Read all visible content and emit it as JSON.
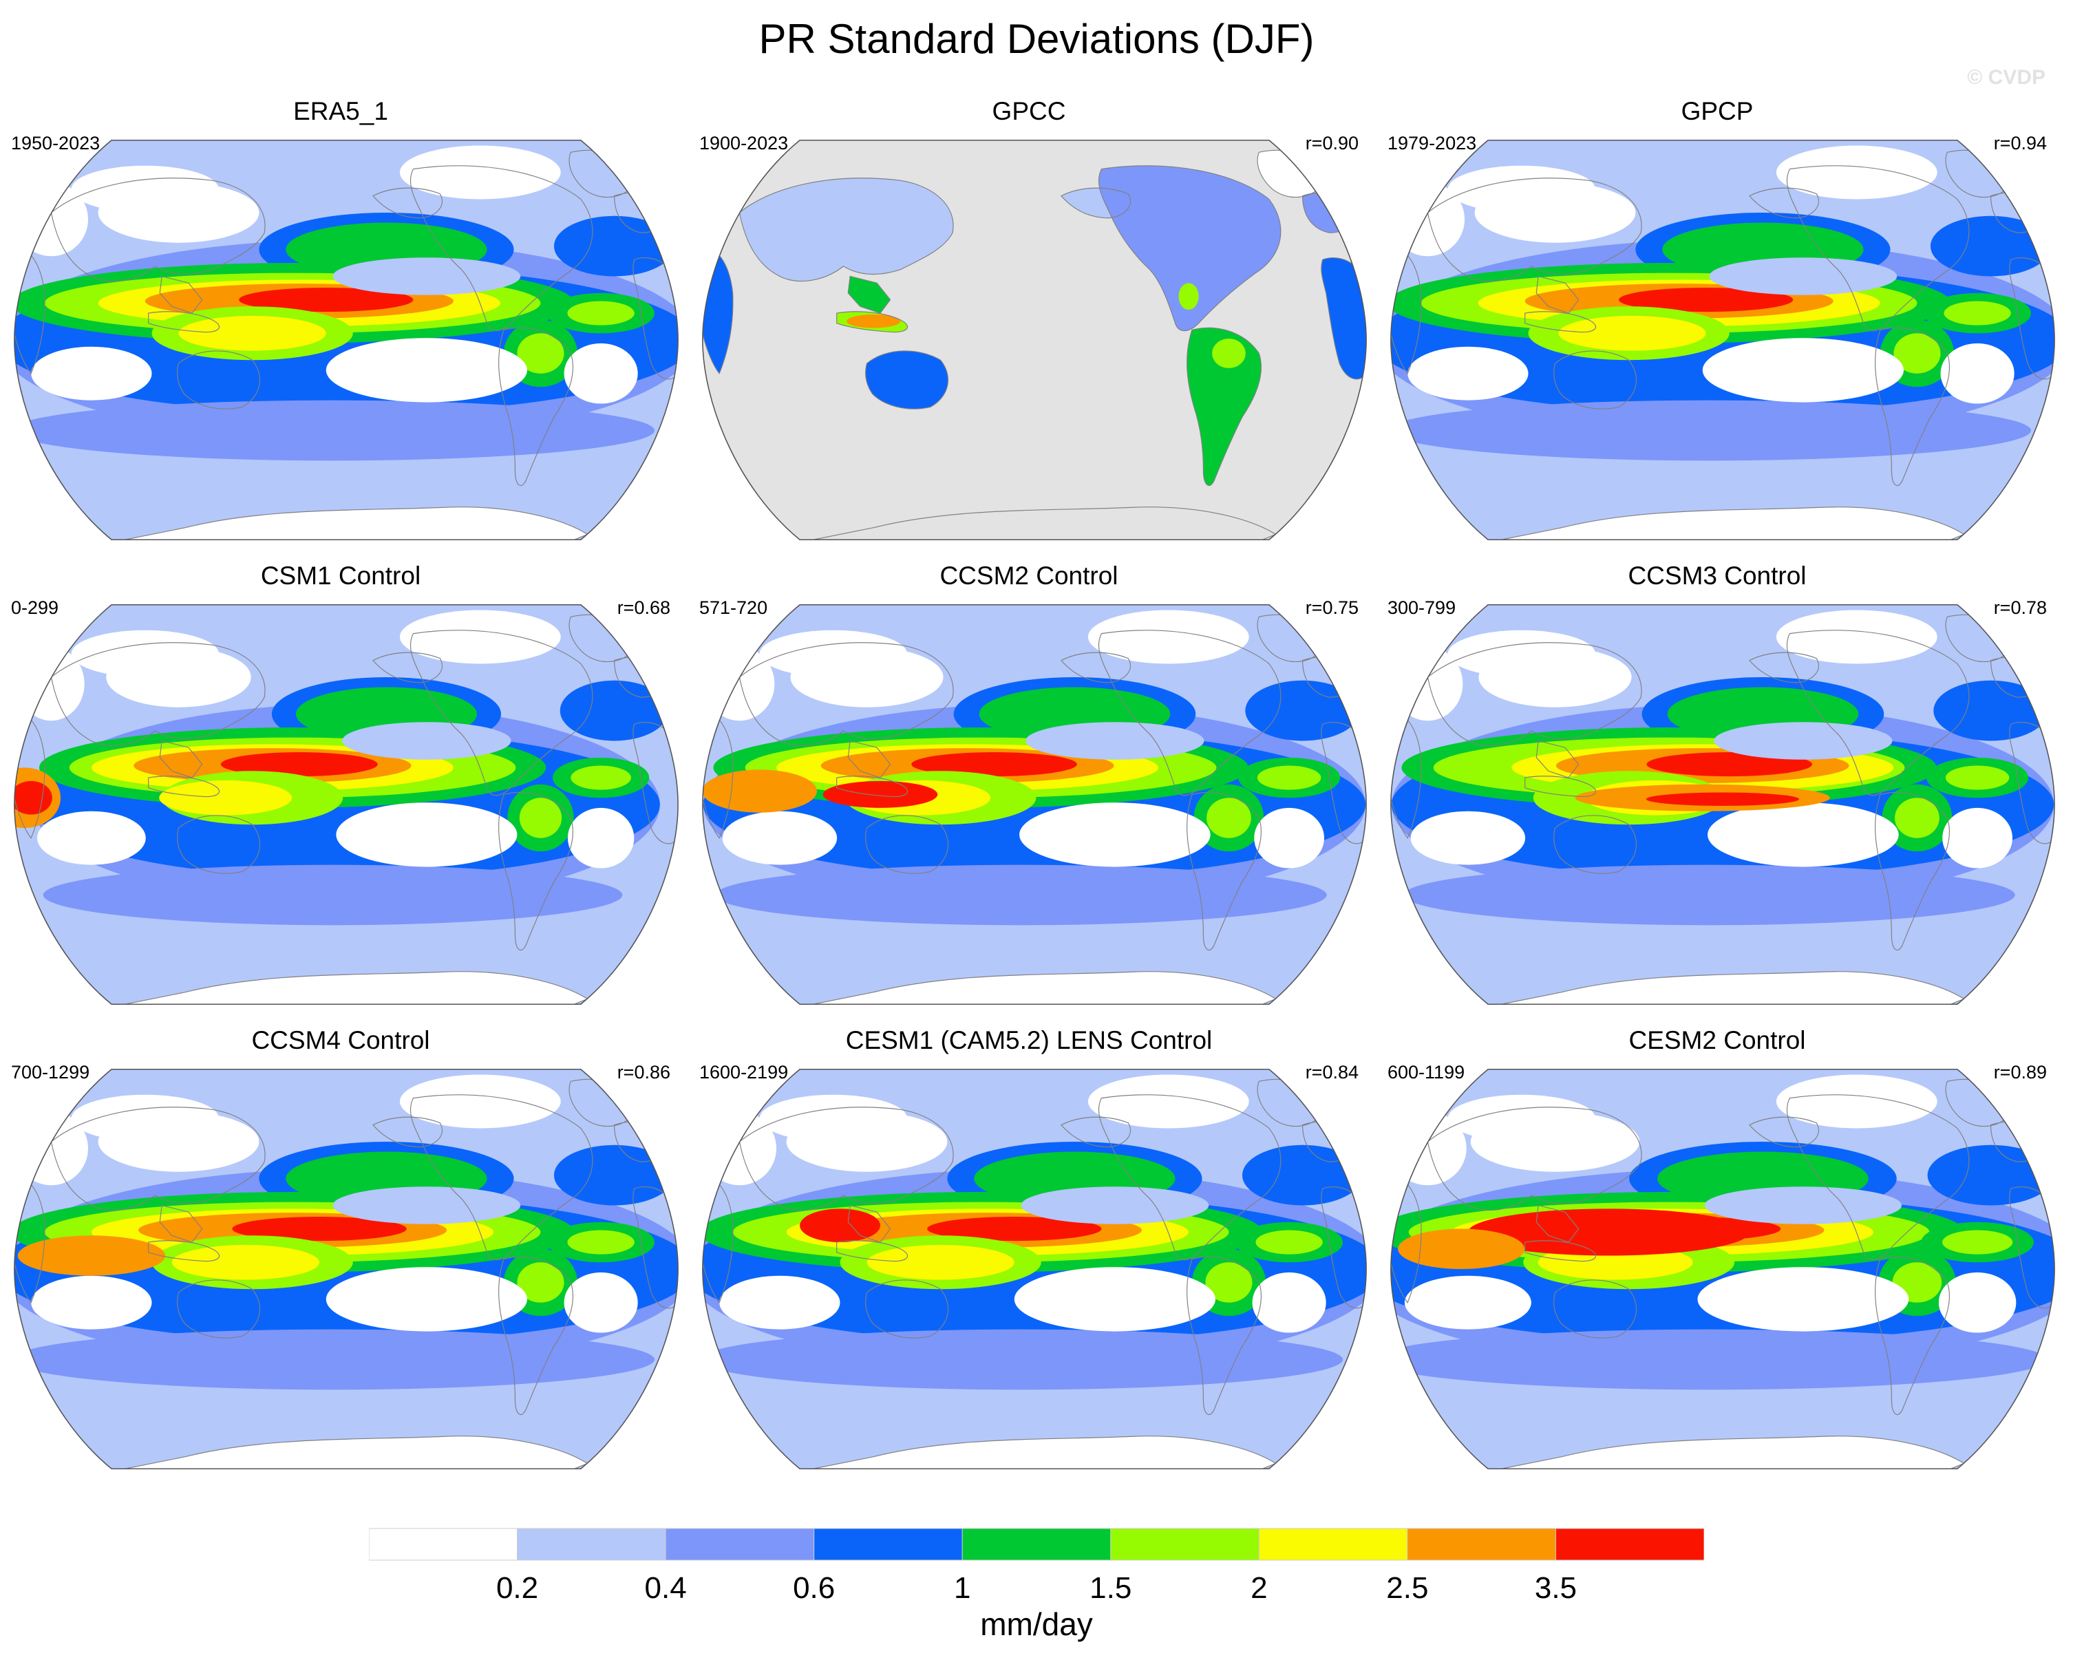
{
  "figure": {
    "title": "PR Standard Deviations (DJF)",
    "watermark": "© CVDP"
  },
  "panels": [
    {
      "title": "ERA5_1",
      "period": "1950-2023",
      "corr": "",
      "data_coverage": "global",
      "mask_color": "#ffffff"
    },
    {
      "title": "GPCC",
      "period": "1900-2023",
      "corr": "r=0.90",
      "data_coverage": "land-only",
      "mask_color": "#e3e3e3"
    },
    {
      "title": "GPCP",
      "period": "1979-2023",
      "corr": "r=0.94",
      "data_coverage": "global",
      "mask_color": "#ffffff"
    },
    {
      "title": "CSM1 Control",
      "period": "0-299",
      "corr": "r=0.68",
      "data_coverage": "global",
      "mask_color": "#ffffff"
    },
    {
      "title": "CCSM2 Control",
      "period": "571-720",
      "corr": "r=0.75",
      "data_coverage": "global",
      "mask_color": "#ffffff"
    },
    {
      "title": "CCSM3 Control",
      "period": "300-799",
      "corr": "r=0.78",
      "data_coverage": "global",
      "mask_color": "#ffffff"
    },
    {
      "title": "CCSM4 Control",
      "period": "700-1299",
      "corr": "r=0.86",
      "data_coverage": "global",
      "mask_color": "#ffffff"
    },
    {
      "title": "CESM1 (CAM5.2) LENS Control",
      "period": "1600-2199",
      "corr": "r=0.84",
      "data_coverage": "global",
      "mask_color": "#ffffff"
    },
    {
      "title": "CESM2 Control",
      "period": "600-1199",
      "corr": "r=0.89",
      "data_coverage": "global",
      "mask_color": "#ffffff"
    }
  ],
  "colorbar": {
    "units": "mm/day",
    "labels": [
      "0.2",
      "0.4",
      "0.6",
      "1",
      "1.5",
      "2",
      "2.5",
      "3.5"
    ],
    "colors": [
      "#ffffff",
      "#b4c8fa",
      "#7d96fa",
      "#0a64fa",
      "#00c832",
      "#96fa00",
      "#fafa00",
      "#fa9600",
      "#fa1400"
    ]
  },
  "map_style": {
    "projection": "robinson-like (pacific-centered)",
    "coastline_color": "#808080",
    "outline_color": "#555555"
  }
}
